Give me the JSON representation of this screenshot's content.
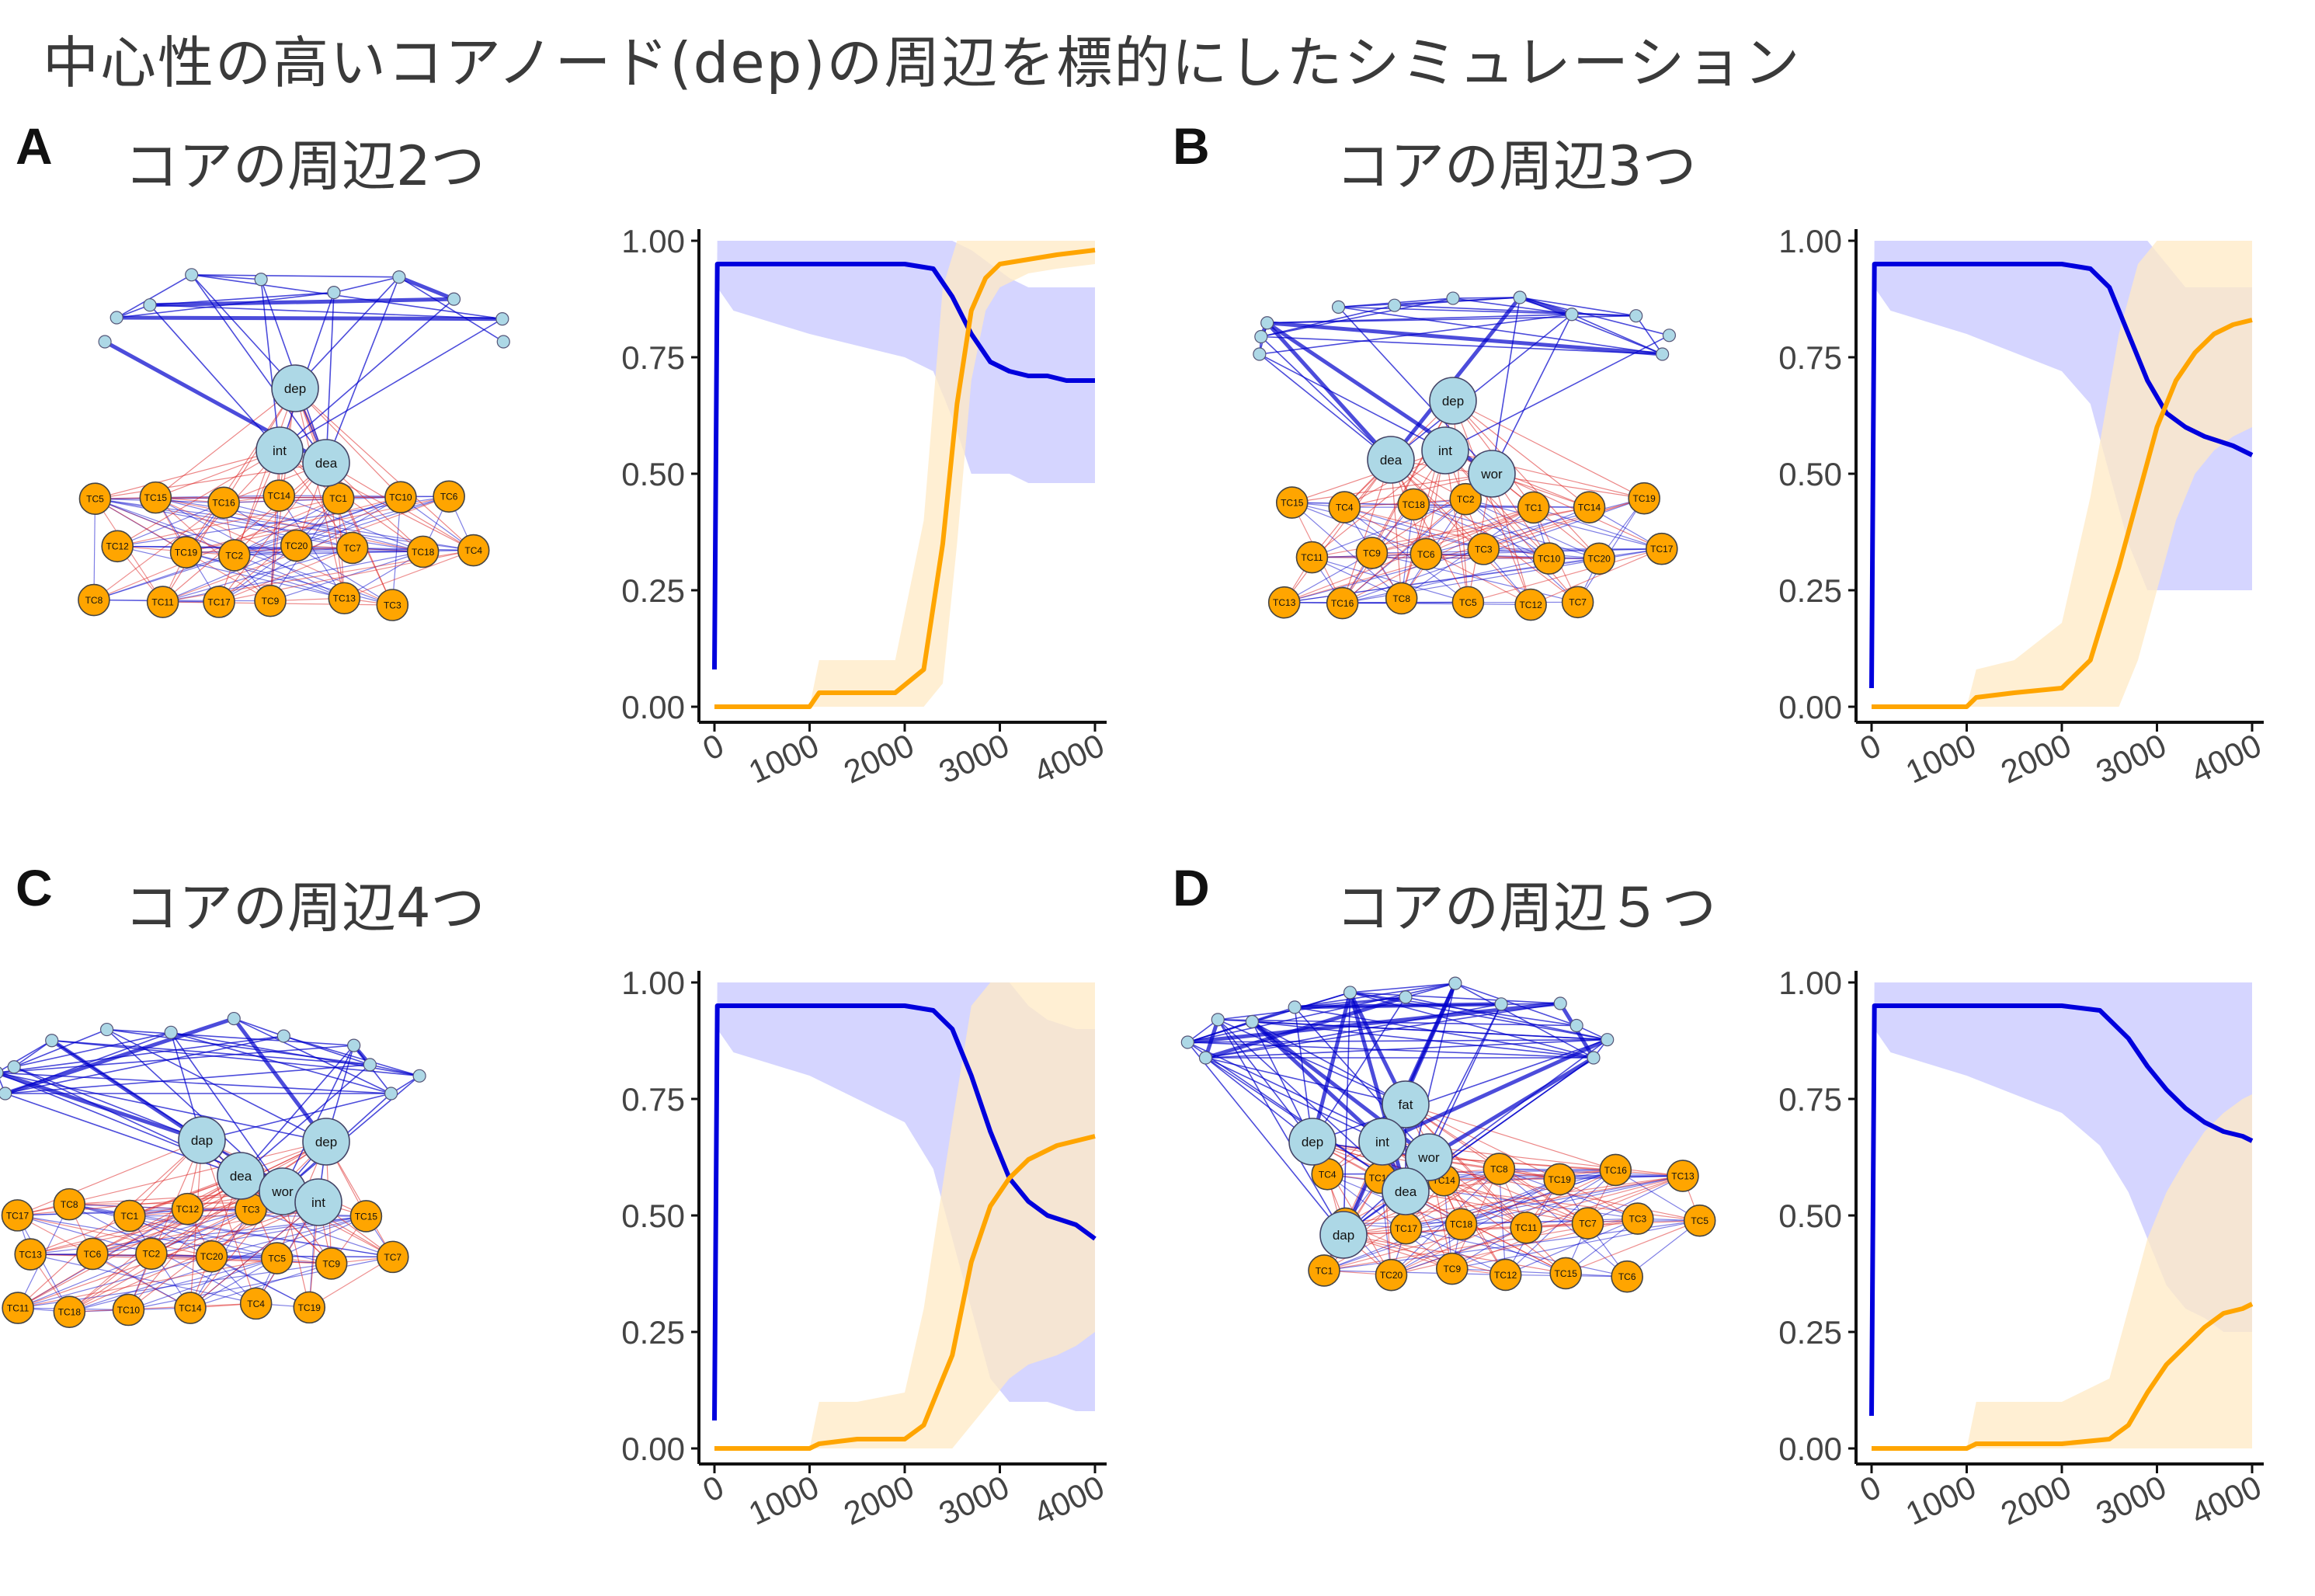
{
  "figure": {
    "title": "中心性の高いコアノード(dep)の周辺を標的にしたシミュレーション",
    "colors": {
      "core_line": "#0000dd",
      "core_band": "#c7c7ff",
      "tc_line": "#ffa500",
      "tc_band": "#ffe9c4",
      "core_node": "#add8e6",
      "tc_node": "#ffa500",
      "edge_positive": "#0000cc",
      "edge_negative": "#dd2222"
    }
  },
  "panels": [
    {
      "letter": "A",
      "title": "コアの周辺2つ",
      "network": {
        "core_labels": [
          "dep",
          "int",
          "dea"
        ],
        "tc_labels": [
          "TC5",
          "TC15",
          "TC16",
          "TC14",
          "TC1",
          "TC10",
          "TC6",
          "TC12",
          "TC19",
          "TC2",
          "TC20",
          "TC7",
          "TC18",
          "TC4",
          "TC8",
          "TC11",
          "TC17",
          "TC9",
          "TC13",
          "TC3"
        ]
      },
      "chart_data": {
        "type": "line",
        "x_ticks": [
          "0",
          "1000",
          "2000",
          "3000",
          "4000"
        ],
        "y_ticks": [
          "0.00",
          "0.25",
          "0.50",
          "0.75",
          "1.00"
        ],
        "xlim": [
          0,
          4000
        ],
        "ylim": [
          0,
          1
        ],
        "series": [
          {
            "color": "#0000dd",
            "x": [
              0,
              30,
              200,
              1000,
              2000,
              2300,
              2500,
              2700,
              2900,
              3100,
              3300,
              3500,
              3700,
              4000
            ],
            "y": [
              0.08,
              0.95,
              0.95,
              0.95,
              0.95,
              0.94,
              0.88,
              0.8,
              0.74,
              0.72,
              0.71,
              0.71,
              0.7,
              0.7
            ],
            "lower": [
              0.08,
              0.9,
              0.85,
              0.8,
              0.75,
              0.72,
              0.62,
              0.5,
              0.5,
              0.5,
              0.48,
              0.48,
              0.48,
              0.48
            ],
            "upper": [
              0.08,
              1,
              1,
              1,
              1,
              1,
              1,
              0.98,
              0.95,
              0.92,
              0.9,
              0.9,
              0.9,
              0.9
            ]
          },
          {
            "color": "#ffa500",
            "x": [
              0,
              1000,
              1100,
              1500,
              1900,
              2200,
              2400,
              2550,
              2700,
              2850,
              3000,
              3300,
              3600,
              4000
            ],
            "y": [
              0,
              0,
              0.03,
              0.03,
              0.03,
              0.08,
              0.35,
              0.65,
              0.85,
              0.92,
              0.95,
              0.96,
              0.97,
              0.98
            ],
            "lower": [
              0,
              0,
              0,
              0,
              0,
              0,
              0.05,
              0.35,
              0.7,
              0.85,
              0.9,
              0.93,
              0.94,
              0.95
            ],
            "upper": [
              0,
              0,
              0.1,
              0.1,
              0.1,
              0.4,
              0.9,
              1,
              1,
              1,
              1,
              1,
              1,
              1
            ]
          }
        ]
      }
    },
    {
      "letter": "B",
      "title": "コアの周辺3つ",
      "network": {
        "core_labels": [
          "dep",
          "dea",
          "int",
          "wor"
        ],
        "tc_labels": [
          "TC15",
          "TC4",
          "TC18",
          "TC2",
          "TC1",
          "TC14",
          "TC19",
          "TC11",
          "TC9",
          "TC6",
          "TC3",
          "TC10",
          "TC20",
          "TC17",
          "TC13",
          "TC16",
          "TC8",
          "TC5",
          "TC12",
          "TC7"
        ]
      },
      "chart_data": {
        "type": "line",
        "x_ticks": [
          "0",
          "1000",
          "2000",
          "3000",
          "4000"
        ],
        "y_ticks": [
          "0.00",
          "0.25",
          "0.50",
          "0.75",
          "1.00"
        ],
        "xlim": [
          0,
          4000
        ],
        "ylim": [
          0,
          1
        ],
        "series": [
          {
            "color": "#0000dd",
            "x": [
              0,
              30,
              200,
              1000,
              2000,
              2300,
              2500,
              2700,
              2900,
              3100,
              3300,
              3500,
              3800,
              4000
            ],
            "y": [
              0.04,
              0.95,
              0.95,
              0.95,
              0.95,
              0.94,
              0.9,
              0.8,
              0.7,
              0.63,
              0.6,
              0.58,
              0.56,
              0.54
            ],
            "lower": [
              0.04,
              0.9,
              0.85,
              0.8,
              0.72,
              0.65,
              0.5,
              0.35,
              0.25,
              0.25,
              0.25,
              0.25,
              0.25,
              0.25
            ],
            "upper": [
              0.04,
              1,
              1,
              1,
              1,
              1,
              1,
              1,
              1,
              0.95,
              0.9,
              0.9,
              0.9,
              0.9
            ]
          },
          {
            "color": "#ffa500",
            "x": [
              0,
              1000,
              1100,
              1500,
              2000,
              2300,
              2600,
              2800,
              3000,
              3200,
              3400,
              3600,
              3800,
              4000
            ],
            "y": [
              0,
              0,
              0.02,
              0.03,
              0.04,
              0.1,
              0.3,
              0.45,
              0.6,
              0.7,
              0.76,
              0.8,
              0.82,
              0.83
            ],
            "lower": [
              0,
              0,
              0,
              0,
              0,
              0,
              0,
              0.1,
              0.25,
              0.4,
              0.5,
              0.55,
              0.58,
              0.6
            ],
            "upper": [
              0,
              0,
              0.08,
              0.1,
              0.18,
              0.45,
              0.8,
              0.95,
              1,
              1,
              1,
              1,
              1,
              1
            ]
          }
        ]
      }
    },
    {
      "letter": "C",
      "title": "コアの周辺4つ",
      "network": {
        "core_labels": [
          "dap",
          "dep",
          "dea",
          "wor",
          "int"
        ],
        "tc_labels": [
          "TC17",
          "TC8",
          "TC1",
          "TC12",
          "TC3",
          "TC16",
          "TC15",
          "TC13",
          "TC6",
          "TC2",
          "TC20",
          "TC5",
          "TC9",
          "TC7",
          "TC11",
          "TC18",
          "TC10",
          "TC14",
          "TC4",
          "TC19"
        ]
      },
      "chart_data": {
        "type": "line",
        "x_ticks": [
          "0",
          "1000",
          "2000",
          "3000",
          "4000"
        ],
        "y_ticks": [
          "0.00",
          "0.25",
          "0.50",
          "0.75",
          "1.00"
        ],
        "xlim": [
          0,
          4000
        ],
        "ylim": [
          0,
          1
        ],
        "series": [
          {
            "color": "#0000dd",
            "x": [
              0,
              30,
              200,
              1000,
              2000,
              2300,
              2500,
              2700,
              2900,
              3100,
              3300,
              3500,
              3800,
              4000
            ],
            "y": [
              0.06,
              0.95,
              0.95,
              0.95,
              0.95,
              0.94,
              0.9,
              0.8,
              0.68,
              0.58,
              0.53,
              0.5,
              0.48,
              0.45
            ],
            "lower": [
              0.06,
              0.9,
              0.85,
              0.8,
              0.7,
              0.6,
              0.45,
              0.3,
              0.15,
              0.1,
              0.1,
              0.1,
              0.08,
              0.08
            ],
            "upper": [
              0.06,
              1,
              1,
              1,
              1,
              1,
              1,
              1,
              1,
              1,
              0.95,
              0.92,
              0.9,
              0.9
            ]
          },
          {
            "color": "#ffa500",
            "x": [
              0,
              1000,
              1100,
              1500,
              2000,
              2200,
              2500,
              2700,
              2900,
              3100,
              3300,
              3600,
              3800,
              4000
            ],
            "y": [
              0,
              0,
              0.01,
              0.02,
              0.02,
              0.05,
              0.2,
              0.4,
              0.52,
              0.58,
              0.62,
              0.65,
              0.66,
              0.67
            ],
            "lower": [
              0,
              0,
              0,
              0,
              0,
              0,
              0,
              0.05,
              0.1,
              0.15,
              0.18,
              0.2,
              0.22,
              0.25
            ],
            "upper": [
              0,
              0,
              0.1,
              0.1,
              0.12,
              0.3,
              0.7,
              0.95,
              1,
              1,
              1,
              1,
              1,
              1
            ]
          }
        ]
      }
    },
    {
      "letter": "D",
      "title": "コアの周辺５つ",
      "network": {
        "core_labels": [
          "fat",
          "dep",
          "int",
          "wor",
          "dea",
          "dap"
        ],
        "tc_labels": [
          "TC4",
          "TC10",
          "TC14",
          "TC8",
          "TC19",
          "TC16",
          "TC13",
          "TC2",
          "TC17",
          "TC18",
          "TC11",
          "TC7",
          "TC3",
          "TC5",
          "TC1",
          "TC20",
          "TC9",
          "TC12",
          "TC15",
          "TC6"
        ]
      },
      "chart_data": {
        "type": "line",
        "x_ticks": [
          "0",
          "1000",
          "2000",
          "3000",
          "4000"
        ],
        "y_ticks": [
          "0.00",
          "0.25",
          "0.50",
          "0.75",
          "1.00"
        ],
        "xlim": [
          0,
          4000
        ],
        "ylim": [
          0,
          1
        ],
        "series": [
          {
            "color": "#0000dd",
            "x": [
              0,
              30,
              200,
              1000,
              2000,
              2400,
              2700,
              2900,
              3100,
              3300,
              3500,
              3700,
              3900,
              4000
            ],
            "y": [
              0.07,
              0.95,
              0.95,
              0.95,
              0.95,
              0.94,
              0.88,
              0.82,
              0.77,
              0.73,
              0.7,
              0.68,
              0.67,
              0.66
            ],
            "lower": [
              0.07,
              0.9,
              0.85,
              0.8,
              0.72,
              0.65,
              0.55,
              0.45,
              0.35,
              0.3,
              0.28,
              0.25,
              0.25,
              0.25
            ],
            "upper": [
              0.07,
              1,
              1,
              1,
              1,
              1,
              1,
              1,
              1,
              1,
              1,
              1,
              1,
              1
            ]
          },
          {
            "color": "#ffa500",
            "x": [
              0,
              1000,
              1100,
              1500,
              2000,
              2500,
              2700,
              2900,
              3100,
              3300,
              3500,
              3700,
              3900,
              4000
            ],
            "y": [
              0,
              0,
              0.01,
              0.01,
              0.01,
              0.02,
              0.05,
              0.12,
              0.18,
              0.22,
              0.26,
              0.29,
              0.3,
              0.31
            ],
            "lower": [
              0,
              0,
              0,
              0,
              0,
              0,
              0,
              0,
              0,
              0,
              0,
              0,
              0,
              0
            ],
            "upper": [
              0,
              0,
              0.1,
              0.1,
              0.1,
              0.15,
              0.3,
              0.45,
              0.55,
              0.62,
              0.68,
              0.72,
              0.75,
              0.76
            ]
          }
        ]
      }
    }
  ]
}
